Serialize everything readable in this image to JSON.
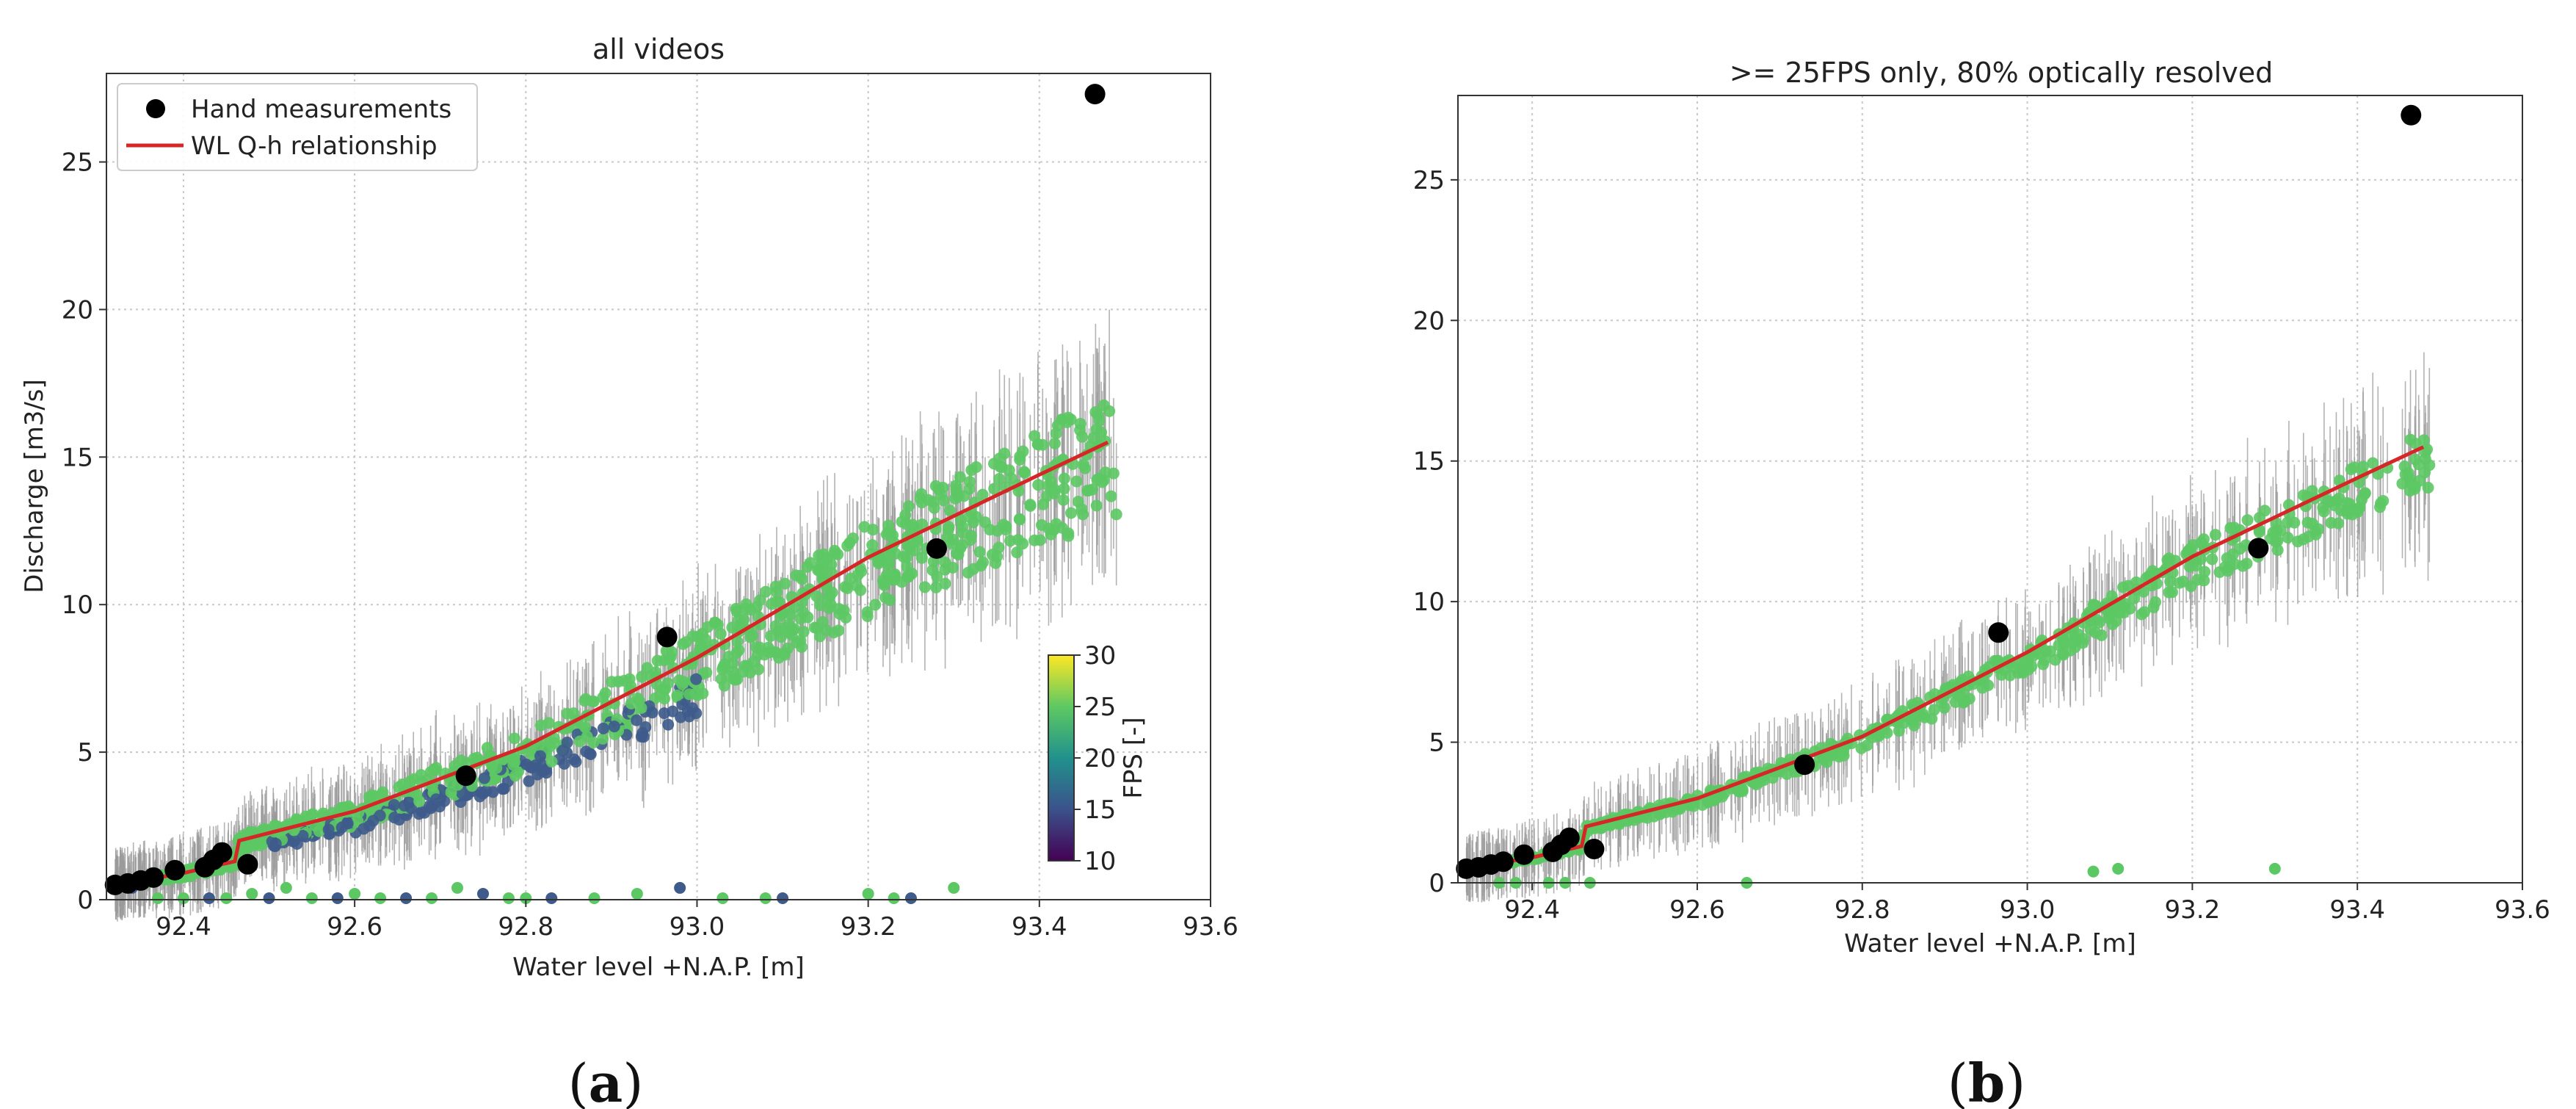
{
  "chart_data": [
    {
      "panel_label": "(a)",
      "type": "scatter",
      "title": "all videos",
      "xlabel": "Water level +N.A.P. [m]",
      "ylabel": "Discharge [m3/s]",
      "xlim": [
        92.31,
        93.6
      ],
      "ylim": [
        0,
        28
      ],
      "xticks": [
        "92.4",
        "92.6",
        "92.8",
        "93.0",
        "93.2",
        "93.4",
        "93.6"
      ],
      "yticks": [
        "0",
        "5",
        "10",
        "15",
        "20",
        "25"
      ],
      "grid": true,
      "legend": {
        "placement": "top-left",
        "entries": [
          "Hand measurements",
          "WL Q-h relationship"
        ]
      },
      "colorbar": {
        "label": "FPS [-]",
        "range": [
          10,
          30
        ],
        "ticks": [
          "10",
          "15",
          "20",
          "25",
          "30"
        ],
        "placement": "right-inside"
      },
      "colors": {
        "high_fps": "#5cc864",
        "low_fps": "#3e5b8c",
        "error_bars": "#9a9a9a",
        "hand": "#000000",
        "qh": "#d62728"
      },
      "series": [
        {
          "name": "Hand measurements",
          "points": [
            [
              92.32,
              0.5
            ],
            [
              92.335,
              0.55
            ],
            [
              92.35,
              0.65
            ],
            [
              92.365,
              0.75
            ],
            [
              92.39,
              1.0
            ],
            [
              92.425,
              1.1
            ],
            [
              92.435,
              1.35
            ],
            [
              92.445,
              1.6
            ],
            [
              92.475,
              1.2
            ],
            [
              92.73,
              4.2
            ],
            [
              92.965,
              8.9
            ],
            [
              93.28,
              11.9
            ],
            [
              93.465,
              27.3
            ]
          ]
        },
        {
          "name": "WL Q-h relationship",
          "points": [
            [
              92.32,
              0.5
            ],
            [
              92.4,
              0.9
            ],
            [
              92.46,
              1.3
            ],
            [
              92.465,
              2.0
            ],
            [
              92.6,
              3.0
            ],
            [
              92.8,
              5.2
            ],
            [
              93.0,
              8.2
            ],
            [
              93.2,
              11.6
            ],
            [
              93.4,
              14.4
            ],
            [
              93.48,
              15.5
            ]
          ]
        }
      ]
    },
    {
      "panel_label": "(b)",
      "type": "scatter",
      "title": ">= 25FPS only, 80% optically resolved",
      "xlabel": "Water level +N.A.P. [m]",
      "ylabel": "",
      "xlim": [
        92.31,
        93.6
      ],
      "ylim": [
        0,
        28
      ],
      "xticks": [
        "92.4",
        "92.6",
        "92.8",
        "93.0",
        "93.2",
        "93.4",
        "93.6"
      ],
      "yticks": [
        "0",
        "5",
        "10",
        "15",
        "20",
        "25"
      ],
      "grid": true,
      "colors": {
        "points": "#5cc864",
        "error_bars": "#9a9a9a",
        "hand": "#000000",
        "qh": "#d62728"
      },
      "series": [
        {
          "name": "Hand measurements",
          "points": [
            [
              92.32,
              0.5
            ],
            [
              92.335,
              0.55
            ],
            [
              92.35,
              0.65
            ],
            [
              92.365,
              0.75
            ],
            [
              92.39,
              1.0
            ],
            [
              92.425,
              1.1
            ],
            [
              92.435,
              1.35
            ],
            [
              92.445,
              1.6
            ],
            [
              92.475,
              1.2
            ],
            [
              92.73,
              4.2
            ],
            [
              92.965,
              8.9
            ],
            [
              93.28,
              11.9
            ],
            [
              93.465,
              27.3
            ]
          ]
        },
        {
          "name": "WL Q-h relationship",
          "points": [
            [
              92.32,
              0.5
            ],
            [
              92.4,
              0.9
            ],
            [
              92.46,
              1.3
            ],
            [
              92.465,
              2.0
            ],
            [
              92.6,
              3.0
            ],
            [
              92.8,
              5.2
            ],
            [
              93.0,
              8.2
            ],
            [
              93.2,
              11.6
            ],
            [
              93.4,
              14.4
            ],
            [
              93.48,
              15.5
            ]
          ]
        },
        {
          "points": [
            [
              92.36,
              0.0
            ],
            [
              92.38,
              0.0
            ],
            [
              92.42,
              0.0
            ],
            [
              92.44,
              0.0
            ],
            [
              92.47,
              0.0
            ],
            [
              92.66,
              0.0
            ],
            [
              93.08,
              0.4
            ],
            [
              93.11,
              0.5
            ],
            [
              93.3,
              0.5
            ]
          ]
        }
      ]
    }
  ]
}
